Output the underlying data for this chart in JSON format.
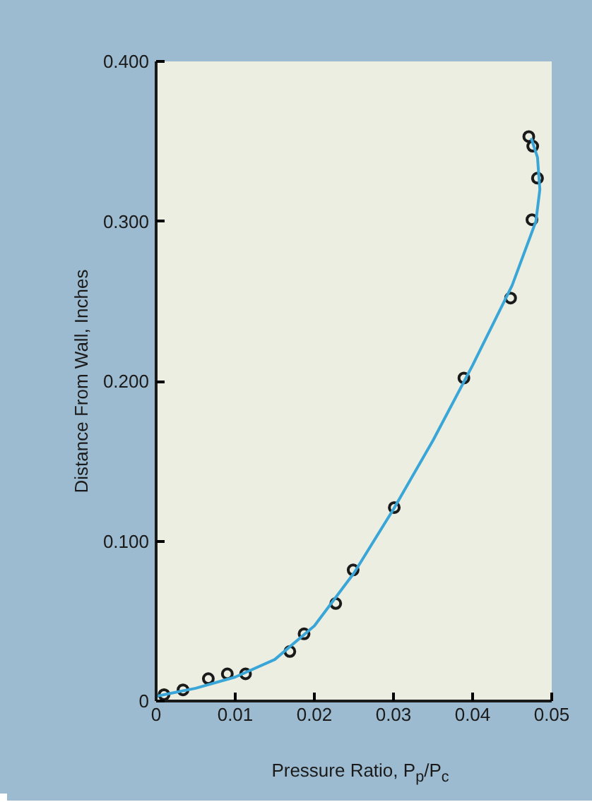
{
  "chart_data": {
    "type": "scatter",
    "xlabel": "Pressure Ratio, P$_{p}$/P$_{c}$",
    "ylabel": "Distance From Wall, Inches",
    "xlim": [
      0,
      0.05
    ],
    "ylim": [
      0,
      0.4
    ],
    "xticks": [
      0,
      0.01,
      0.02,
      0.03,
      0.04,
      0.05
    ],
    "yticks": [
      0,
      {
        "value": 0.1,
        "label": "0.100"
      },
      {
        "value": 0.2,
        "label": "0.200"
      },
      {
        "value": 0.3,
        "label": "0.300"
      },
      {
        "value": 0.4,
        "label": "0.400"
      }
    ],
    "grid": false,
    "series": [
      {
        "marker": "circle",
        "color": "#1a1a1a",
        "x": [
          0.001,
          0.0034,
          0.0066,
          0.009,
          0.0113,
          0.0169,
          0.0187,
          0.0227,
          0.0249,
          0.0301,
          0.0389,
          0.0448,
          0.0475,
          0.0482,
          0.0476,
          0.0471
        ],
        "values": [
          0.004,
          0.007,
          0.014,
          0.017,
          0.017,
          0.031,
          0.042,
          0.061,
          0.082,
          0.121,
          0.202,
          0.252,
          0.301,
          0.327,
          0.347,
          0.353
        ]
      },
      {
        "type": "line",
        "marker": "none",
        "color": "#3aa6d8",
        "x": [
          0.0,
          0.005,
          0.01,
          0.015,
          0.02,
          0.025,
          0.03,
          0.035,
          0.04,
          0.045,
          0.048,
          0.0485,
          0.0482,
          0.0474
        ],
        "values": [
          0.003,
          0.008,
          0.015,
          0.026,
          0.047,
          0.08,
          0.12,
          0.163,
          0.21,
          0.26,
          0.3,
          0.32,
          0.34,
          0.352
        ]
      }
    ]
  }
}
